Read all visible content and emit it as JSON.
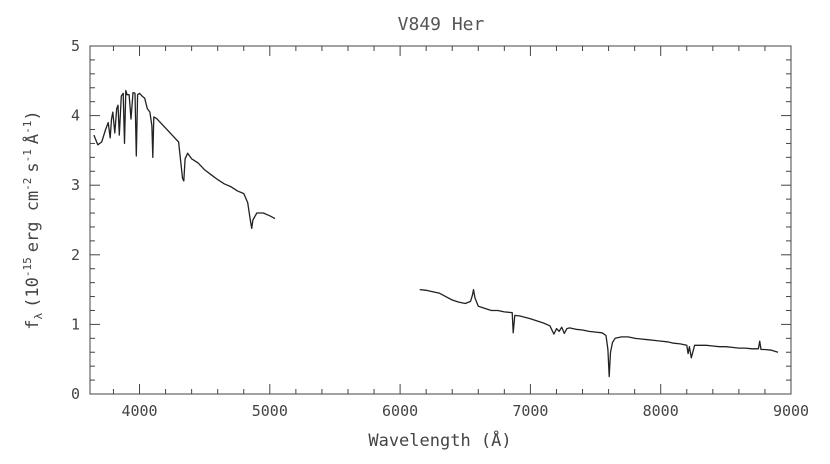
{
  "chart_data": {
    "type": "line",
    "title": "V849 Her",
    "xlabel": "Wavelength (Å)",
    "ylabel": {
      "base": "f",
      "sub": "λ",
      "open": "(10",
      "exp1": "-15",
      "mid1": "erg cm",
      "exp2": "-2",
      "mid2": "s",
      "exp3": "-1",
      "mid3": "Å",
      "exp4": "-1",
      "close": ")"
    },
    "xlim": [
      3620,
      9000
    ],
    "ylim": [
      0,
      5
    ],
    "xticks": [
      4000,
      5000,
      6000,
      7000,
      8000,
      9000
    ],
    "yticks": [
      0,
      1,
      2,
      3,
      4,
      5
    ],
    "grid": false,
    "colors": {
      "line": "#222222",
      "axis": "#444444"
    },
    "series": [
      {
        "x": [
          3650,
          3680,
          3710,
          3740,
          3760,
          3775,
          3785,
          3795,
          3810,
          3825,
          3835,
          3845,
          3860,
          3875,
          3885,
          3895,
          3905,
          3920,
          3935,
          3950,
          3965,
          3975,
          3985,
          4000,
          4020,
          4040,
          4060,
          4080,
          4095,
          4102,
          4110,
          4130,
          4160,
          4200,
          4250,
          4300,
          4330,
          4340,
          4350,
          4370,
          4400,
          4450,
          4500,
          4550,
          4600,
          4650,
          4700,
          4750,
          4800,
          4830,
          4850,
          4861,
          4870,
          4900,
          4950,
          5000,
          5040
        ],
        "y": [
          3.72,
          3.58,
          3.62,
          3.8,
          3.9,
          3.68,
          3.95,
          4.05,
          3.75,
          4.1,
          4.15,
          3.72,
          4.28,
          4.32,
          3.6,
          4.36,
          4.3,
          4.3,
          3.95,
          4.33,
          4.32,
          3.42,
          4.3,
          4.32,
          4.28,
          4.25,
          4.1,
          4.05,
          3.85,
          3.4,
          3.98,
          3.96,
          3.9,
          3.82,
          3.72,
          3.62,
          3.1,
          3.06,
          3.38,
          3.46,
          3.38,
          3.32,
          3.22,
          3.15,
          3.08,
          3.02,
          2.98,
          2.92,
          2.88,
          2.75,
          2.5,
          2.38,
          2.5,
          2.6,
          2.6,
          2.56,
          2.52
        ]
      },
      {
        "x": [
          6150,
          6200,
          6250,
          6300,
          6350,
          6400,
          6450,
          6500,
          6540,
          6555,
          6563,
          6575,
          6600,
          6650,
          6700,
          6750,
          6800,
          6860,
          6868,
          6880,
          6920,
          6960,
          7000,
          7050,
          7100,
          7150,
          7180,
          7200,
          7220,
          7240,
          7260,
          7280,
          7300,
          7350,
          7400,
          7450,
          7500,
          7550,
          7580,
          7595,
          7605,
          7615,
          7630,
          7650,
          7700,
          7750,
          7800,
          7850,
          7900,
          7950,
          8000,
          8050,
          8100,
          8150,
          8200,
          8210,
          8220,
          8235,
          8260,
          8300,
          8350,
          8400,
          8450,
          8500,
          8550,
          8600,
          8650,
          8700,
          8750,
          8760,
          8770,
          8800,
          8850,
          8900
        ],
        "y": [
          1.5,
          1.49,
          1.47,
          1.45,
          1.4,
          1.35,
          1.32,
          1.3,
          1.33,
          1.42,
          1.5,
          1.38,
          1.26,
          1.23,
          1.2,
          1.2,
          1.18,
          1.17,
          0.88,
          1.13,
          1.12,
          1.1,
          1.08,
          1.05,
          1.02,
          0.98,
          0.86,
          0.94,
          0.9,
          0.96,
          0.87,
          0.94,
          0.95,
          0.93,
          0.92,
          0.9,
          0.89,
          0.88,
          0.84,
          0.64,
          0.25,
          0.6,
          0.74,
          0.8,
          0.82,
          0.82,
          0.8,
          0.79,
          0.78,
          0.77,
          0.76,
          0.75,
          0.73,
          0.72,
          0.7,
          0.58,
          0.68,
          0.52,
          0.7,
          0.7,
          0.7,
          0.69,
          0.68,
          0.68,
          0.67,
          0.66,
          0.66,
          0.65,
          0.65,
          0.76,
          0.64,
          0.64,
          0.63,
          0.6
        ]
      }
    ]
  }
}
